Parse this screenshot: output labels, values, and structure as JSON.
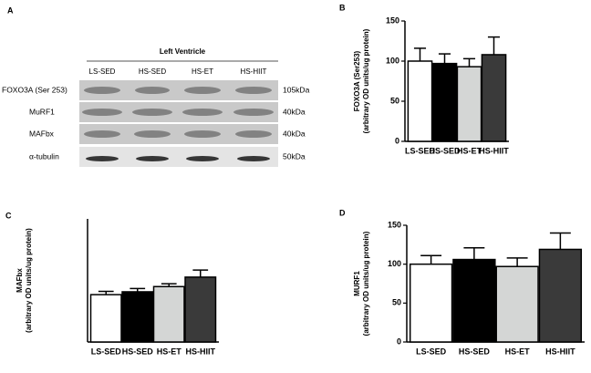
{
  "blot": {
    "panel": "A",
    "title": "Left Ventricle",
    "lanes": [
      "LS-SED",
      "HS-SED",
      "HS-ET",
      "HS-HIIT"
    ],
    "rows": [
      {
        "label": "FOXO3A (Ser 253)",
        "size": "105kDa"
      },
      {
        "label": "MuRF1",
        "size": "40kDa"
      },
      {
        "label": "MAFbx",
        "size": "40kDa"
      },
      {
        "label": "α-tubulin",
        "size": "50kDa"
      }
    ]
  },
  "chart_data": [
    {
      "type": "bar",
      "panel": "B",
      "ylabel": [
        "FOXO3A (Ser253)",
        "(arbitrary OD units/ug protein)"
      ],
      "categories": [
        "LS-SED",
        "HS-SED",
        "HS-ET",
        "HS-HIIT"
      ],
      "values": [
        100,
        97,
        93,
        108
      ],
      "errors": [
        16,
        12,
        10,
        22
      ],
      "colors": [
        "#ffffff",
        "#000000",
        "#d4d6d5",
        "#3a3a3a"
      ],
      "ylim": [
        0,
        150
      ],
      "yticks": [
        0,
        50,
        100,
        150
      ]
    },
    {
      "type": "bar",
      "panel": "C",
      "ylabel": [
        "MAFbx",
        "(arbitrary OD units/ug protein)"
      ],
      "categories": [
        "LS-SED",
        "HS-SED",
        "HS-ET",
        "HS-HIIT"
      ],
      "values": [
        100,
        106,
        117,
        137
      ],
      "errors": [
        7,
        7,
        6,
        15
      ],
      "colors": [
        "#ffffff",
        "#000000",
        "#d4d6d5",
        "#3a3a3a"
      ],
      "ylim": [
        0,
        260
      ]
    },
    {
      "type": "bar",
      "panel": "D",
      "ylabel": [
        "MURF1",
        "(arbitrary OD units/ug protein)"
      ],
      "categories": [
        "LS-SED",
        "HS-SED",
        "HS-ET",
        "HS-HIIT"
      ],
      "values": [
        100,
        106,
        97,
        119
      ],
      "errors": [
        11,
        15,
        11,
        21
      ],
      "colors": [
        "#ffffff",
        "#000000",
        "#d4d6d5",
        "#3a3a3a"
      ],
      "ylim": [
        0,
        150
      ],
      "yticks": [
        0,
        50,
        100,
        150
      ]
    }
  ]
}
